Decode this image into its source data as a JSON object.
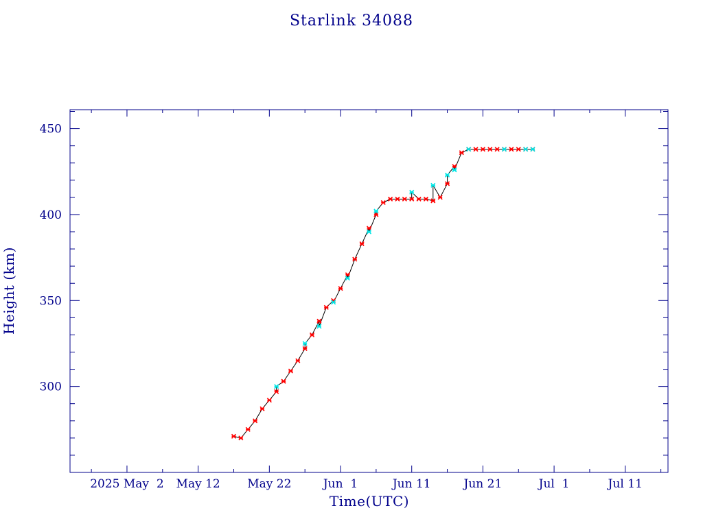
{
  "chart_data": {
    "type": "scatter",
    "title": "Starlink 34088",
    "xlabel": "Time(UTC)",
    "ylabel": "Height (km)",
    "x_type": "date",
    "xlim": [
      "2025-04-24",
      "2025-07-17"
    ],
    "ylim": [
      250,
      461
    ],
    "x_ticks": [
      {
        "date": "2025-05-02",
        "label": "2025 May  2"
      },
      {
        "date": "2025-05-12",
        "label": "May 12"
      },
      {
        "date": "2025-05-22",
        "label": "May 22"
      },
      {
        "date": "2025-06-01",
        "label": "Jun  1"
      },
      {
        "date": "2025-06-11",
        "label": "Jun 11"
      },
      {
        "date": "2025-06-21",
        "label": "Jun 21"
      },
      {
        "date": "2025-07-01",
        "label": "Jul  1"
      },
      {
        "date": "2025-07-11",
        "label": "Jul 11"
      }
    ],
    "y_ticks": [
      300,
      350,
      400,
      450
    ],
    "grid": false,
    "colors": {
      "axis": "#00008b",
      "text": "#00008b",
      "line": "#000000",
      "marker_primary": "#ff0000",
      "marker_secondary": "#00e5e5"
    },
    "series": [
      {
        "marker": "red",
        "points": [
          [
            "2025-05-17",
            271
          ],
          [
            "2025-05-18",
            270
          ],
          [
            "2025-05-19",
            275
          ],
          [
            "2025-05-20",
            280
          ],
          [
            "2025-05-21",
            287
          ],
          [
            "2025-05-22",
            292
          ],
          [
            "2025-05-23",
            297
          ],
          [
            "2025-05-24",
            303
          ],
          [
            "2025-05-25",
            309
          ],
          [
            "2025-05-26",
            315
          ],
          [
            "2025-05-27",
            322
          ],
          [
            "2025-05-28",
            330
          ],
          [
            "2025-05-29",
            338
          ],
          [
            "2025-05-30",
            346
          ],
          [
            "2025-05-31",
            350
          ],
          [
            "2025-06-01",
            357
          ],
          [
            "2025-06-02",
            365
          ],
          [
            "2025-06-03",
            374
          ],
          [
            "2025-06-04",
            383
          ],
          [
            "2025-06-05",
            392
          ],
          [
            "2025-06-06",
            400
          ],
          [
            "2025-06-07",
            407
          ],
          [
            "2025-06-08",
            409
          ],
          [
            "2025-06-09",
            409
          ],
          [
            "2025-06-10",
            409
          ],
          [
            "2025-06-11",
            409
          ],
          [
            "2025-06-12",
            409
          ],
          [
            "2025-06-13",
            409
          ],
          [
            "2025-06-14",
            408
          ],
          [
            "2025-06-15",
            410
          ],
          [
            "2025-06-16",
            418
          ],
          [
            "2025-06-17",
            428
          ],
          [
            "2025-06-18",
            436
          ],
          [
            "2025-06-19",
            438
          ],
          [
            "2025-06-20",
            438
          ],
          [
            "2025-06-21",
            438
          ],
          [
            "2025-06-22",
            438
          ],
          [
            "2025-06-23",
            438
          ],
          [
            "2025-06-24",
            438
          ],
          [
            "2025-06-25",
            438
          ],
          [
            "2025-06-26",
            438
          ],
          [
            "2025-06-27",
            438
          ],
          [
            "2025-06-28",
            438
          ]
        ]
      },
      {
        "marker": "cyan",
        "points": [
          [
            "2025-05-23",
            300
          ],
          [
            "2025-05-27",
            325
          ],
          [
            "2025-05-29",
            335
          ],
          [
            "2025-05-31",
            349
          ],
          [
            "2025-06-02",
            363
          ],
          [
            "2025-06-05",
            390
          ],
          [
            "2025-06-06",
            402
          ],
          [
            "2025-06-11",
            413
          ],
          [
            "2025-06-14",
            417
          ],
          [
            "2025-06-16",
            423
          ],
          [
            "2025-06-17",
            426
          ],
          [
            "2025-06-19",
            438
          ],
          [
            "2025-06-24",
            438
          ],
          [
            "2025-06-27",
            438
          ],
          [
            "2025-06-28",
            438
          ]
        ]
      }
    ]
  }
}
